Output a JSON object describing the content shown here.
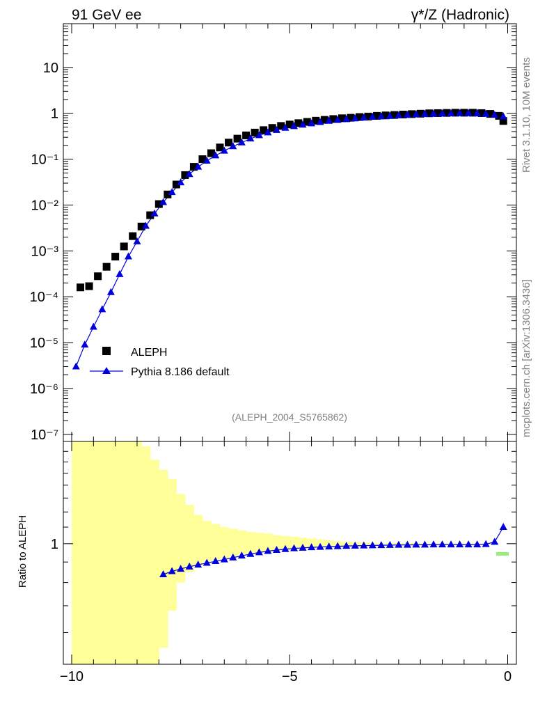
{
  "header": {
    "left": "91 GeV ee",
    "right": "γ*/Z (Hadronic)"
  },
  "side": {
    "rivet": "Rivet 3.1.10,  10M events",
    "mcplots": "mcplots.cern.ch [arXiv:1306.3436]"
  },
  "analysis_label": "(ALEPH_2004_S5765862)",
  "chart_data": [
    {
      "type": "scatter",
      "panel": "main",
      "yscale": "log",
      "xlim": [
        -10,
        0.2
      ],
      "ylim": [
        7e-08,
        90
      ],
      "ytick_labels": [
        "10⁻⁷",
        "10⁻⁶",
        "10⁻⁵",
        "10⁻⁴",
        "10⁻³",
        "10⁻²",
        "10⁻¹",
        "1",
        "10"
      ],
      "ytick_values": [
        1e-07,
        1e-06,
        1e-05,
        0.0001,
        0.001,
        0.01,
        0.1,
        1,
        10
      ],
      "legend_position": "bottom-left",
      "series": [
        {
          "name": "ALEPH",
          "color": "#000000",
          "marker": "square",
          "x": [
            -9.8,
            -9.6,
            -9.4,
            -9.2,
            -9.0,
            -8.8,
            -8.6,
            -8.4,
            -8.2,
            -8.0,
            -7.8,
            -7.6,
            -7.4,
            -7.2,
            -7.0,
            -6.8,
            -6.6,
            -6.4,
            -6.2,
            -6.0,
            -5.8,
            -5.6,
            -5.4,
            -5.2,
            -5.0,
            -4.8,
            -4.6,
            -4.4,
            -4.2,
            -4.0,
            -3.8,
            -3.6,
            -3.4,
            -3.2,
            -3.0,
            -2.8,
            -2.6,
            -2.4,
            -2.2,
            -2.0,
            -1.8,
            -1.6,
            -1.4,
            -1.2,
            -1.0,
            -0.8,
            -0.6,
            -0.4,
            -0.2,
            -0.1
          ],
          "y": [
            0.00016,
            0.00017,
            0.00028,
            0.00045,
            0.00075,
            0.00125,
            0.0021,
            0.0034,
            0.006,
            0.0105,
            0.017,
            0.028,
            0.045,
            0.068,
            0.1,
            0.135,
            0.18,
            0.23,
            0.28,
            0.33,
            0.38,
            0.43,
            0.48,
            0.53,
            0.57,
            0.61,
            0.65,
            0.69,
            0.72,
            0.75,
            0.78,
            0.8,
            0.83,
            0.85,
            0.88,
            0.9,
            0.92,
            0.94,
            0.96,
            0.98,
            1.0,
            1.01,
            1.02,
            1.03,
            1.03,
            1.03,
            1.01,
            0.97,
            0.88,
            0.68
          ]
        },
        {
          "name": "Pythia 8.186 default",
          "color": "#0000dd",
          "marker": "triangle",
          "x": [
            -9.9,
            -9.7,
            -9.5,
            -9.3,
            -9.1,
            -8.9,
            -8.7,
            -8.5,
            -8.3,
            -8.1,
            -7.9,
            -7.7,
            -7.5,
            -7.3,
            -7.1,
            -6.9,
            -6.7,
            -6.5,
            -6.3,
            -6.1,
            -5.9,
            -5.7,
            -5.5,
            -5.3,
            -5.1,
            -4.9,
            -4.7,
            -4.5,
            -4.3,
            -4.1,
            -3.9,
            -3.7,
            -3.5,
            -3.3,
            -3.1,
            -2.9,
            -2.7,
            -2.5,
            -2.3,
            -2.1,
            -1.9,
            -1.7,
            -1.5,
            -1.3,
            -1.1,
            -0.9,
            -0.7,
            -0.5,
            -0.3,
            -0.1
          ],
          "y": [
            3e-06,
            9e-06,
            2.2e-05,
            5.3e-05,
            0.000125,
            0.00031,
            0.00075,
            0.0016,
            0.0035,
            0.0065,
            0.0115,
            0.019,
            0.031,
            0.047,
            0.068,
            0.092,
            0.12,
            0.152,
            0.19,
            0.23,
            0.28,
            0.33,
            0.38,
            0.43,
            0.48,
            0.52,
            0.56,
            0.6,
            0.64,
            0.68,
            0.71,
            0.74,
            0.77,
            0.8,
            0.83,
            0.85,
            0.87,
            0.9,
            0.92,
            0.94,
            0.96,
            0.97,
            0.98,
            0.99,
            1.0,
            1.0,
            0.99,
            0.97,
            0.92,
            0.85
          ]
        }
      ]
    },
    {
      "type": "line",
      "panel": "ratio",
      "ylabel": "Ratio to ALEPH",
      "xlim": [
        -10,
        0.2
      ],
      "ytick_labels": [
        "1"
      ],
      "ytick_values": [
        1
      ],
      "xtick_labels": [
        "−10",
        "−5",
        "0"
      ],
      "xtick_values": [
        -10,
        -5,
        0
      ],
      "band": {
        "color": "#ffff99",
        "x": [
          -10,
          -9.8,
          -9.6,
          -9.4,
          -9.2,
          -9.0,
          -8.8,
          -8.6,
          -8.4,
          -8.2,
          -8.0,
          -7.8,
          -7.6,
          -7.4,
          -7.2,
          -7.0,
          -6.8,
          -6.6,
          -6.4,
          -6.2,
          -6.0,
          -5.8,
          -5.6,
          -5.4,
          -5.2,
          -5.0,
          -4.8,
          -4.6,
          -4.4,
          -4.2,
          -4.0,
          -3.8,
          -3.6,
          -3.4,
          -3.2,
          -3.0
        ],
        "upper": [
          1.8,
          1.8,
          1.8,
          1.8,
          1.8,
          1.8,
          1.8,
          1.8,
          1.75,
          1.62,
          1.53,
          1.45,
          1.33,
          1.25,
          1.18,
          1.14,
          1.12,
          1.1,
          1.09,
          1.08,
          1.07,
          1.065,
          1.06,
          1.05,
          1.045,
          1.04,
          1.035,
          1.03,
          1.025,
          1.02,
          1.015,
          1.012,
          1.01,
          1.008,
          1.006,
          1.004
        ],
        "lower": [
          0.5,
          0.5,
          0.5,
          0.5,
          0.5,
          0.5,
          0.5,
          0.5,
          0.5,
          0.5,
          0.55,
          0.68,
          0.8,
          0.85,
          0.88,
          0.9,
          0.91,
          0.92,
          0.93,
          0.94,
          0.945,
          0.95,
          0.955,
          0.96,
          0.965,
          0.97,
          0.975,
          0.978,
          0.98,
          0.983,
          0.986,
          0.99,
          0.992,
          0.994,
          0.996,
          0.998
        ]
      },
      "series": [
        {
          "name": "Pythia 8.186 default / ALEPH",
          "color": "#0000dd",
          "marker": "triangle",
          "x": [
            -7.9,
            -7.7,
            -7.5,
            -7.3,
            -7.1,
            -6.9,
            -6.7,
            -6.5,
            -6.3,
            -6.1,
            -5.9,
            -5.7,
            -5.5,
            -5.3,
            -5.1,
            -4.9,
            -4.7,
            -4.5,
            -4.3,
            -4.1,
            -3.9,
            -3.7,
            -3.5,
            -3.3,
            -3.1,
            -2.9,
            -2.7,
            -2.5,
            -2.3,
            -2.1,
            -1.9,
            -1.7,
            -1.5,
            -1.3,
            -1.1,
            -0.9,
            -0.7,
            -0.5,
            -0.3,
            -0.1
          ],
          "y": [
            0.838,
            0.853,
            0.865,
            0.876,
            0.886,
            0.895,
            0.904,
            0.913,
            0.923,
            0.933,
            0.942,
            0.951,
            0.958,
            0.964,
            0.969,
            0.973,
            0.976,
            0.979,
            0.981,
            0.983,
            0.985,
            0.987,
            0.988,
            0.989,
            0.99,
            0.991,
            0.992,
            0.993,
            0.993,
            0.994,
            0.994,
            0.995,
            0.995,
            0.995,
            0.995,
            0.995,
            0.995,
            0.997,
            1.01,
            1.1
          ]
        }
      ]
    }
  ]
}
